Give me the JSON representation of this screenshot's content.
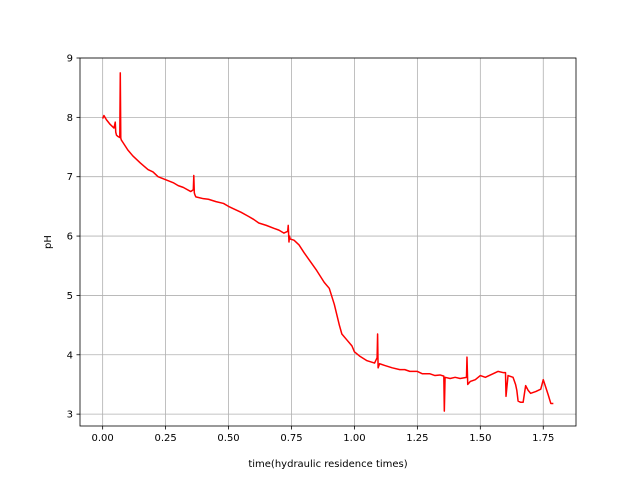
{
  "chart_data": {
    "type": "line",
    "title": "",
    "xlabel": "time(hydraulic residence times)",
    "ylabel": "pH",
    "xlim": [
      -0.09,
      1.88
    ],
    "ylim": [
      2.8,
      9.0
    ],
    "xticks": [
      0.0,
      0.25,
      0.5,
      0.75,
      1.0,
      1.25,
      1.5,
      1.75
    ],
    "xtick_labels": [
      "0.00",
      "0.25",
      "0.50",
      "0.75",
      "1.00",
      "1.25",
      "1.50",
      "1.75"
    ],
    "yticks": [
      3,
      4,
      5,
      6,
      7,
      8,
      9
    ],
    "ytick_labels": [
      "3",
      "4",
      "5",
      "6",
      "7",
      "8",
      "9"
    ],
    "grid": true,
    "line_color": "#ff0000",
    "series": [
      {
        "x": [
          0.0,
          0.005,
          0.015,
          0.03,
          0.045,
          0.05,
          0.052,
          0.055,
          0.06,
          0.068,
          0.07,
          0.072,
          0.074,
          0.08,
          0.1,
          0.12,
          0.15,
          0.18,
          0.2,
          0.22,
          0.25,
          0.28,
          0.3,
          0.32,
          0.35,
          0.36,
          0.362,
          0.364,
          0.366,
          0.37,
          0.4,
          0.42,
          0.45,
          0.48,
          0.5,
          0.52,
          0.55,
          0.58,
          0.6,
          0.62,
          0.65,
          0.68,
          0.7,
          0.72,
          0.735,
          0.737,
          0.74,
          0.742,
          0.745,
          0.76,
          0.78,
          0.8,
          0.82,
          0.85,
          0.88,
          0.9,
          0.92,
          0.94,
          0.95,
          0.97,
          0.99,
          1.0,
          1.02,
          1.05,
          1.08,
          1.09,
          1.092,
          1.094,
          1.1,
          1.12,
          1.15,
          1.18,
          1.2,
          1.22,
          1.25,
          1.27,
          1.3,
          1.32,
          1.34,
          1.355,
          1.357,
          1.36,
          1.38,
          1.4,
          1.42,
          1.445,
          1.447,
          1.45,
          1.46,
          1.48,
          1.5,
          1.52,
          1.55,
          1.57,
          1.59,
          1.6,
          1.602,
          1.61,
          1.63,
          1.64,
          1.645,
          1.65,
          1.66,
          1.67,
          1.68,
          1.69,
          1.7,
          1.72,
          1.74,
          1.75,
          1.76,
          1.77,
          1.78,
          1.79
        ],
        "y": [
          7.98,
          8.03,
          7.96,
          7.88,
          7.82,
          7.92,
          7.75,
          7.7,
          7.68,
          7.66,
          8.75,
          7.65,
          7.62,
          7.58,
          7.45,
          7.35,
          7.23,
          7.12,
          7.08,
          7.0,
          6.95,
          6.9,
          6.85,
          6.82,
          6.75,
          6.78,
          7.02,
          6.73,
          6.7,
          6.66,
          6.63,
          6.62,
          6.58,
          6.55,
          6.5,
          6.46,
          6.4,
          6.33,
          6.28,
          6.22,
          6.18,
          6.13,
          6.1,
          6.05,
          6.08,
          6.18,
          5.9,
          6.0,
          5.95,
          5.93,
          5.85,
          5.72,
          5.6,
          5.42,
          5.22,
          5.12,
          4.85,
          4.5,
          4.35,
          4.25,
          4.15,
          4.05,
          3.98,
          3.9,
          3.86,
          3.95,
          4.35,
          3.78,
          3.85,
          3.82,
          3.78,
          3.75,
          3.75,
          3.72,
          3.72,
          3.68,
          3.68,
          3.65,
          3.66,
          3.64,
          3.05,
          3.62,
          3.6,
          3.62,
          3.6,
          3.62,
          3.96,
          3.5,
          3.55,
          3.58,
          3.65,
          3.62,
          3.68,
          3.72,
          3.7,
          3.7,
          3.3,
          3.65,
          3.62,
          3.5,
          3.4,
          3.22,
          3.2,
          3.2,
          3.48,
          3.4,
          3.35,
          3.38,
          3.42,
          3.58,
          3.45,
          3.32,
          3.18,
          3.18
        ]
      }
    ]
  }
}
